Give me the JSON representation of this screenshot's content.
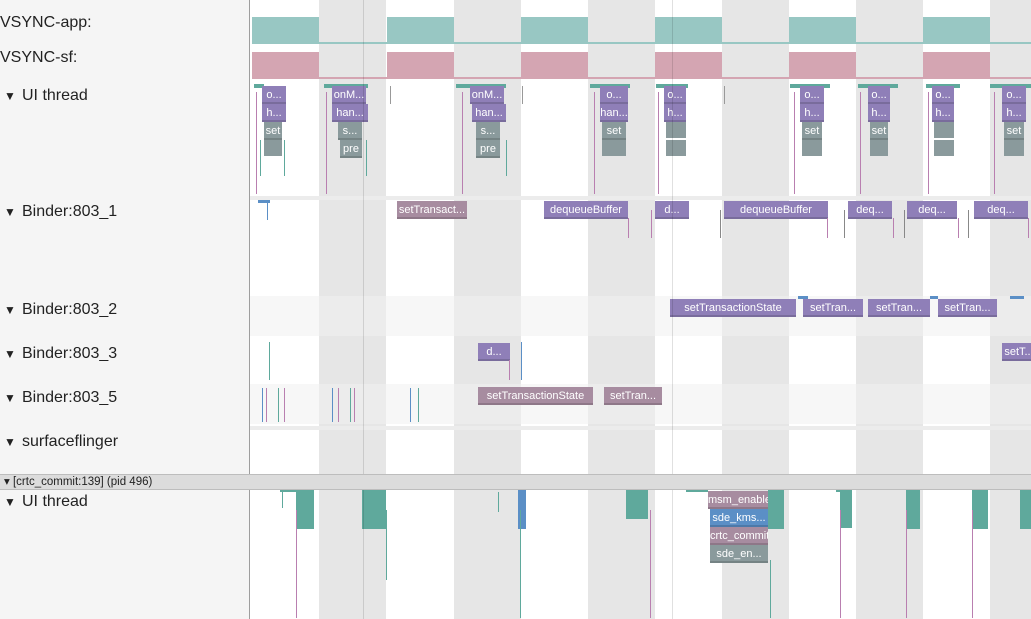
{
  "process_header": {
    "arrow": "▾",
    "label": "[crtc_commit:139] (pid 496)"
  },
  "tracks": [
    {
      "id": "vsync-app",
      "label": "VSYNC-app:",
      "expandable": false
    },
    {
      "id": "vsync-sf",
      "label": "VSYNC-sf:",
      "expandable": false
    },
    {
      "id": "ui-thread",
      "label": "UI thread",
      "expandable": true,
      "arrow": "▼"
    },
    {
      "id": "binder-803-1",
      "label": "Binder:803_1",
      "expandable": true,
      "arrow": "▼"
    },
    {
      "id": "binder-803-2",
      "label": "Binder:803_2",
      "expandable": true,
      "arrow": "▼"
    },
    {
      "id": "binder-803-3",
      "label": "Binder:803_3",
      "expandable": true,
      "arrow": "▼"
    },
    {
      "id": "binder-803-5",
      "label": "Binder:803_5",
      "expandable": true,
      "arrow": "▼"
    },
    {
      "id": "surfaceflinger",
      "label": "surfaceflinger",
      "expandable": true,
      "arrow": "▼"
    },
    {
      "id": "ui-thread-2",
      "label": "UI thread",
      "expandable": true,
      "arrow": "▼"
    }
  ],
  "colors": {
    "vsync_app": "#98c7c3",
    "vsync_sf": "#d4a5b2",
    "stripe": "#e4e4e4",
    "slice_purple": "#8f7fb8",
    "slice_mauve": "#a78ca0",
    "slice_teal": "#5fa99c",
    "slice_blue": "#5b8fc6",
    "slice_gray": "#8a9a9c"
  },
  "slices": {
    "ui_thread": [
      "o...",
      "h...",
      "set",
      "onM...",
      "han...",
      "s...",
      "pre",
      "onM...",
      "han...",
      "s...",
      "pre",
      "o...",
      "han...",
      "set",
      "o...",
      "h...",
      "o...",
      "h...",
      "set",
      "o...",
      "h...",
      "set",
      "o...",
      "h...",
      "o...",
      "h...",
      "set"
    ],
    "binder_803_1": [
      "setTransact...",
      "dequeueBuffer",
      "d...",
      "dequeueBuffer",
      "deq...",
      "deq...",
      "deq..."
    ],
    "binder_803_2": [
      "setTransactionState",
      "setTran...",
      "setTran...",
      "setTran..."
    ],
    "binder_803_3": [
      "d...",
      "setT..."
    ],
    "binder_803_5": [
      "setTransactionState",
      "setTran..."
    ],
    "crtc_ui_thread": [
      "msm_enable",
      "sde_kms...",
      "crtc_commit",
      "sde_en..."
    ]
  }
}
